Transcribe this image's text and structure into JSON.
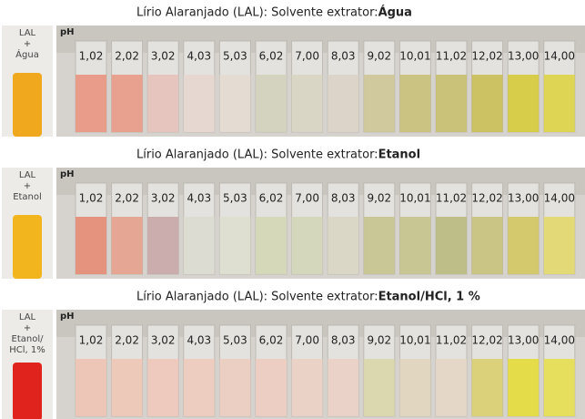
{
  "panels": [
    {
      "title": "Lírio Alaranjado (LAL): Solvente extrator: ",
      "title_bold": "Água",
      "side_label": [
        "LAL",
        "+",
        "Água"
      ],
      "axis_label": "pH",
      "ph_values": [
        "1,02",
        "2,02",
        "3,02",
        "4,03",
        "5,03",
        "6,02",
        "7,00",
        "8,03",
        "9,02",
        "10,01",
        "11,02",
        "12,02",
        "13,00",
        "14,00"
      ]
    },
    {
      "title": "Lírio Alaranjado (LAL): Solvente extrator: ",
      "title_bold": "Etanol",
      "side_label": [
        "LAL",
        "+",
        "Etanol"
      ],
      "axis_label": "pH",
      "ph_values": [
        "1,02",
        "2,02",
        "3,02",
        "4,03",
        "5,03",
        "6,02",
        "7,00",
        "8,03",
        "9,02",
        "10,01",
        "11,02",
        "12,02",
        "13,00",
        "14,00"
      ]
    },
    {
      "title": "Lírio Alaranjado (LAL): Solvente extrator: ",
      "title_bold": "Etanol/HCl, 1 %",
      "side_label": [
        "LAL",
        "+",
        "Etanol/",
        "HCl, 1%"
      ],
      "axis_label": "pH",
      "ph_values": [
        "1,02",
        "2,02",
        "3,02",
        "4,03",
        "5,03",
        "6,02",
        "7,00",
        "8,03",
        "9,02",
        "10,01",
        "11,02",
        "12,02",
        "13,00",
        "14,00"
      ]
    }
  ]
}
